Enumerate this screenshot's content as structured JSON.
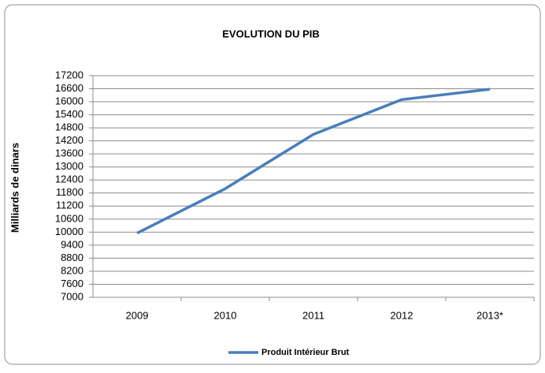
{
  "chart_data": {
    "type": "line",
    "title": "EVOLUTION DU PIB",
    "y_label": "Milliards de dinars",
    "categories": [
      "2009",
      "2010",
      "2011",
      "2012",
      "2013*"
    ],
    "series": [
      {
        "name": "Produit Intérieur Brut",
        "color": "#4a7ebb",
        "values": [
          9950,
          12000,
          14500,
          16100,
          16580
        ]
      }
    ],
    "ylim": [
      7000,
      17200
    ],
    "yticks": [
      7000,
      7600,
      8200,
      8800,
      9400,
      10000,
      10600,
      11200,
      11800,
      12400,
      13000,
      13600,
      14200,
      14800,
      15400,
      16000,
      16600,
      17200
    ],
    "grid": true,
    "legend": "bottom"
  }
}
